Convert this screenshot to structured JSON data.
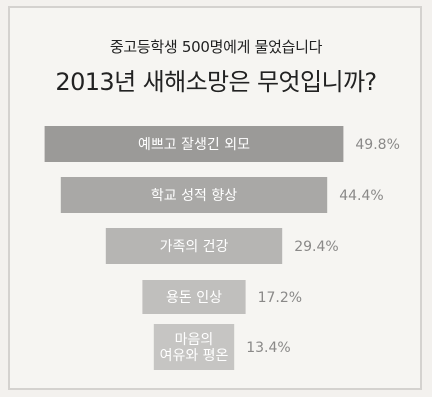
{
  "header": {
    "subtitle": "중고등학생 500명에게 물었습니다",
    "title": "2013년 새해소망은 무엇입니까?"
  },
  "chart_data": {
    "type": "bar",
    "orientation": "horizontal",
    "categories": [
      "예쁘고 잘생긴 외모",
      "학교 성적 향상",
      "가족의 건강",
      "용돈 인상",
      "마음의\n여유와 평온"
    ],
    "values": [
      49.8,
      44.4,
      29.4,
      17.2,
      13.4
    ],
    "value_labels": [
      "49.8%",
      "44.4%",
      "29.4%",
      "17.2%",
      "13.4%"
    ],
    "title": "2013년 새해소망은 무엇입니까?",
    "subtitle": "중고등학생 500명에게 물었습니다",
    "colors": [
      "#9b9a98",
      "#a9a8a6",
      "#b6b5b3",
      "#c0bfbd",
      "#c6c5c3"
    ],
    "label_color": "#ffffff",
    "value_color": "#8a8988",
    "grid": false,
    "legend": "none"
  }
}
